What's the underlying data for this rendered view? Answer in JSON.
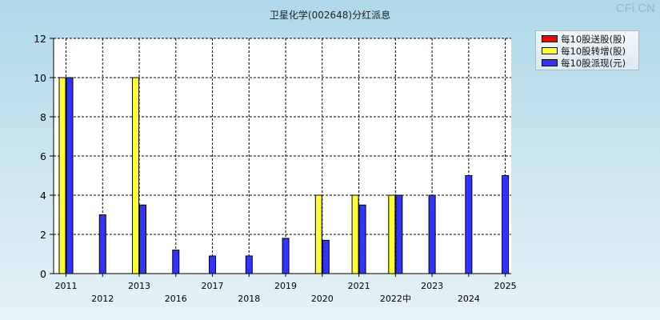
{
  "title": "卫星化学(002648)分红派息",
  "watermark": "CFi.CN",
  "colors": {
    "song": "#ff0000",
    "zhuan": "#ffff33",
    "pai": "#3333ff"
  },
  "chart_data": {
    "type": "bar",
    "title": "卫星化学(002648)分红派息",
    "categories": [
      "2011",
      "2012",
      "2013",
      "2016",
      "2017",
      "2018",
      "2019",
      "2020",
      "2021",
      "2022中",
      "2023",
      "2024",
      "2025"
    ],
    "series": [
      {
        "name": "每10股送股(股)",
        "color": "#ff0000",
        "values": [
          0,
          0,
          0,
          0,
          0,
          0,
          0,
          0,
          0,
          0,
          0,
          0,
          0
        ]
      },
      {
        "name": "每10股转增(股)",
        "color": "#ffff33",
        "values": [
          10,
          0,
          10,
          0,
          0,
          0,
          0,
          4,
          4,
          4,
          0,
          0,
          0
        ]
      },
      {
        "name": "每10股派现(元)",
        "color": "#3333ff",
        "values": [
          10,
          3,
          3.5,
          1.2,
          0.9,
          0.9,
          1.8,
          1.7,
          3.5,
          4,
          4,
          5,
          5
        ]
      }
    ],
    "ylim": [
      0,
      12
    ],
    "yticks": [
      0,
      2,
      4,
      6,
      8,
      10,
      12
    ],
    "grid": true,
    "legend_position": "top-right"
  }
}
